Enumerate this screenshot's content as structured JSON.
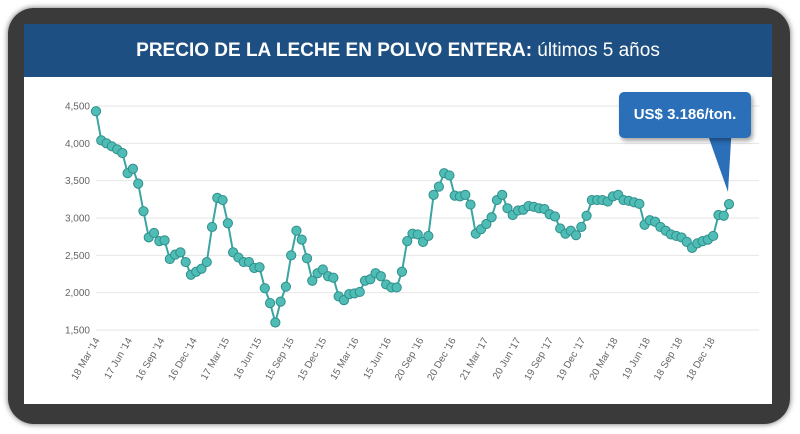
{
  "header": {
    "title_bold": "PRECIO DE LA LECHE EN POLVO ENTERA:",
    "title_rest": " últimos 5 años"
  },
  "callout": {
    "text": "US$ 3.186/ton."
  },
  "colors": {
    "header_bg": "#1e4f82",
    "line": "#3aa5a1",
    "marker": "#4fbdb6",
    "callout_bg": "#2a6fb8"
  },
  "chart_data": {
    "type": "line",
    "ylim": [
      1500,
      4500
    ],
    "y_ticks": [
      "1,500",
      "2,000",
      "2,500",
      "3,000",
      "3,500",
      "4,000",
      "4,500"
    ],
    "y_tick_values": [
      1500,
      2000,
      2500,
      3000,
      3500,
      4000,
      4500
    ],
    "x_tick_labels": [
      "18 Mar '14",
      "17 Jun '14",
      "16 Sep '14",
      "16 Dec '14",
      "17 Mar '15",
      "16 Jun '15",
      "15 Sep '15",
      "15 Dec '15",
      "15 Mar '16",
      "15 Jun '16",
      "20 Sep '16",
      "20 Dec '16",
      "21 Mar '17",
      "20 Jun '17",
      "19 Sep '17",
      "19 Dec '17",
      "20 Mar '18",
      "19 Jun '18",
      "18 Sep '18",
      "18 Dec '18"
    ],
    "grid": true,
    "values": [
      4430,
      4040,
      4000,
      3960,
      3920,
      3870,
      3600,
      3660,
      3460,
      3090,
      2740,
      2800,
      2690,
      2700,
      2450,
      2510,
      2540,
      2410,
      2240,
      2280,
      2320,
      2410,
      2880,
      3270,
      3240,
      2930,
      2540,
      2470,
      2410,
      2410,
      2330,
      2340,
      2060,
      1860,
      1600,
      1880,
      2080,
      2500,
      2830,
      2710,
      2460,
      2160,
      2260,
      2310,
      2220,
      2200,
      1950,
      1900,
      1980,
      1990,
      2010,
      2160,
      2180,
      2260,
      2220,
      2110,
      2070,
      2070,
      2280,
      2690,
      2790,
      2780,
      2680,
      2760,
      3310,
      3420,
      3600,
      3570,
      3300,
      3290,
      3310,
      3180,
      2790,
      2850,
      2920,
      3010,
      3240,
      3310,
      3130,
      3040,
      3100,
      3110,
      3160,
      3150,
      3130,
      3120,
      3050,
      3020,
      2860,
      2790,
      2830,
      2770,
      2880,
      3030,
      3240,
      3240,
      3240,
      3220,
      3290,
      3310,
      3240,
      3230,
      3210,
      3190,
      2910,
      2970,
      2950,
      2880,
      2830,
      2780,
      2760,
      2740,
      2680,
      2600,
      2660,
      2690,
      2710,
      2760,
      3040,
      3030,
      3186
    ]
  }
}
